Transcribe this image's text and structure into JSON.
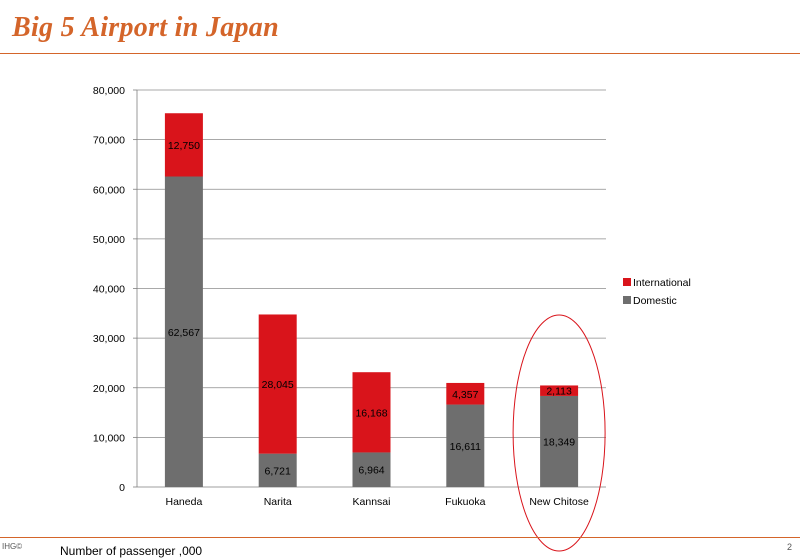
{
  "title": "Big 5 Airport in Japan",
  "footer": {
    "left": "IHG©",
    "caption": "Number of passenger  ,000",
    "page": "2"
  },
  "colors": {
    "title": "#d4652a",
    "international": "#d9141b",
    "domestic": "#6e6e6e",
    "highlight": "#d9141b"
  },
  "chart_data": {
    "type": "bar",
    "stacked": true,
    "categories": [
      "Haneda",
      "Narita",
      "Kannsai",
      "Fukuoka",
      "New Chitose"
    ],
    "series": [
      {
        "name": "Domestic",
        "values": [
          62567,
          6721,
          6964,
          16611,
          18349
        ],
        "labels": [
          "62,567",
          "6,721",
          "6,964",
          "16,611",
          "18,349"
        ]
      },
      {
        "name": "International",
        "values": [
          12750,
          28045,
          16168,
          4357,
          2113
        ],
        "labels": [
          "12,750",
          "28,045",
          "16,168",
          "4,357",
          "2,113"
        ]
      }
    ],
    "y_ticks": [
      "0",
      "10,000",
      "20,000",
      "30,000",
      "40,000",
      "50,000",
      "60,000",
      "70,000",
      "80,000"
    ],
    "ylim": [
      0,
      80000
    ],
    "grid": true,
    "legend_position": "right",
    "highlighted_category": "New Chitose"
  }
}
